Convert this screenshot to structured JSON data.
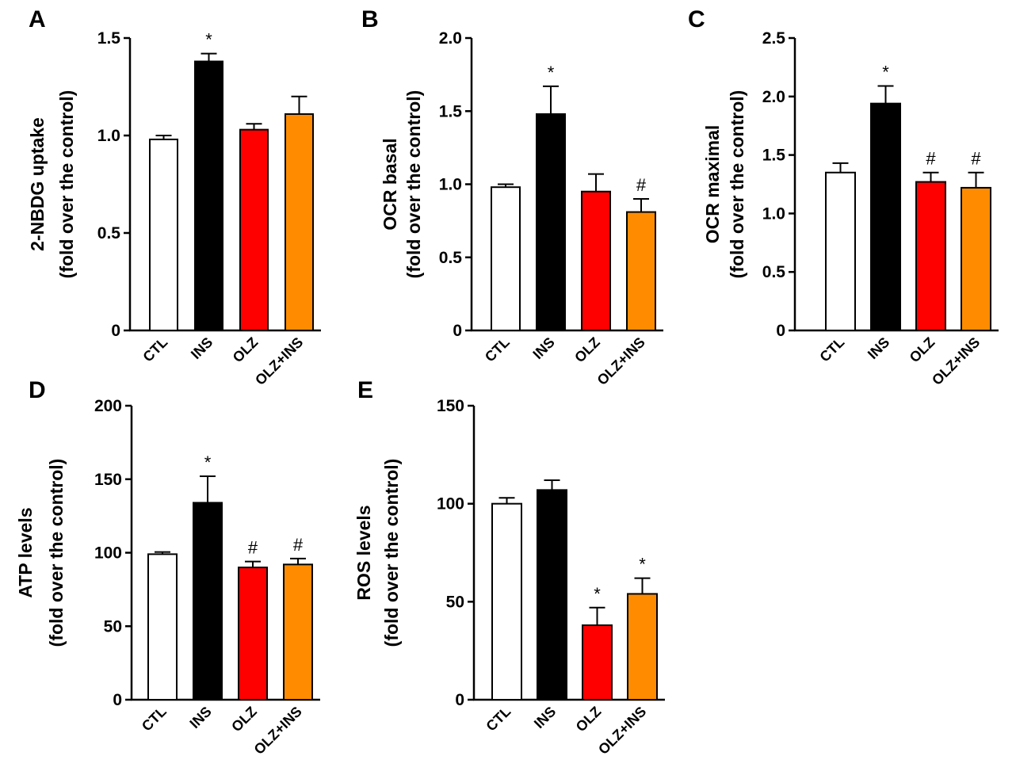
{
  "figure": {
    "colors": {
      "CTL": "#ffffff",
      "INS": "#000000",
      "OLZ": "#ff0000",
      "OLZ+INS": "#ff8c00"
    }
  },
  "chart_data": [
    {
      "panel": "A",
      "type": "bar",
      "categories": [
        "CTL",
        "INS",
        "OLZ",
        "OLZ+INS"
      ],
      "values": [
        0.98,
        1.38,
        1.03,
        1.11
      ],
      "errors": [
        0.02,
        0.04,
        0.03,
        0.09
      ],
      "annotations": [
        "",
        "*",
        "",
        ""
      ],
      "ylabel": [
        "2-NBDG uptake",
        "(fold over the control)"
      ],
      "ylim": [
        0,
        1.5
      ],
      "yticks": [
        0,
        0.5,
        1.0,
        1.5
      ],
      "ytick_labels": [
        "0",
        "0.5",
        "1.0",
        "1.5"
      ]
    },
    {
      "panel": "B",
      "type": "bar",
      "categories": [
        "CTL",
        "INS",
        "OLZ",
        "OLZ+INS"
      ],
      "values": [
        0.98,
        1.48,
        0.95,
        0.81
      ],
      "errors": [
        0.02,
        0.19,
        0.12,
        0.09
      ],
      "annotations": [
        "",
        "*",
        "",
        "#"
      ],
      "ylabel": [
        "OCR basal",
        "(fold over the control)"
      ],
      "ylim": [
        0,
        2.0
      ],
      "yticks": [
        0,
        0.5,
        1.0,
        1.5,
        2.0
      ],
      "ytick_labels": [
        "0",
        "0.5",
        "1.0",
        "1.5",
        "2.0"
      ]
    },
    {
      "panel": "C",
      "type": "bar",
      "categories": [
        "CTL",
        "INS",
        "OLZ",
        "OLZ+INS"
      ],
      "values": [
        1.35,
        1.94,
        1.27,
        1.22
      ],
      "errors": [
        0.08,
        0.15,
        0.08,
        0.13
      ],
      "annotations": [
        "",
        "*",
        "#",
        "#"
      ],
      "ylabel": [
        "OCR maximal",
        "(fold over the control)"
      ],
      "ylim": [
        0,
        2.5
      ],
      "yticks": [
        0,
        0.5,
        1.0,
        1.5,
        2.0,
        2.5
      ],
      "ytick_labels": [
        "0",
        "0.5",
        "1.0",
        "1.5",
        "2.0",
        "2.5"
      ]
    },
    {
      "panel": "D",
      "type": "bar",
      "categories": [
        "CTL",
        "INS",
        "OLZ",
        "OLZ+INS"
      ],
      "values": [
        99,
        134,
        90,
        92
      ],
      "errors": [
        1.5,
        18,
        4,
        4
      ],
      "annotations": [
        "",
        "*",
        "#",
        "#"
      ],
      "ylabel": [
        "ATP levels",
        "(fold over the control)"
      ],
      "ylim": [
        0,
        200
      ],
      "yticks": [
        0,
        50,
        100,
        150,
        200
      ],
      "ytick_labels": [
        "0",
        "50",
        "100",
        "150",
        "200"
      ]
    },
    {
      "panel": "E",
      "type": "bar",
      "categories": [
        "CTL",
        "INS",
        "OLZ",
        "OLZ+INS"
      ],
      "values": [
        100,
        107,
        38,
        54
      ],
      "errors": [
        3,
        5,
        9,
        8
      ],
      "annotations": [
        "",
        "",
        "*",
        "*"
      ],
      "ylabel": [
        "ROS levels",
        "(fold over the control)"
      ],
      "ylim": [
        0,
        150
      ],
      "yticks": [
        0,
        50,
        100,
        150
      ],
      "ytick_labels": [
        "0",
        "50",
        "100",
        "150"
      ]
    }
  ]
}
